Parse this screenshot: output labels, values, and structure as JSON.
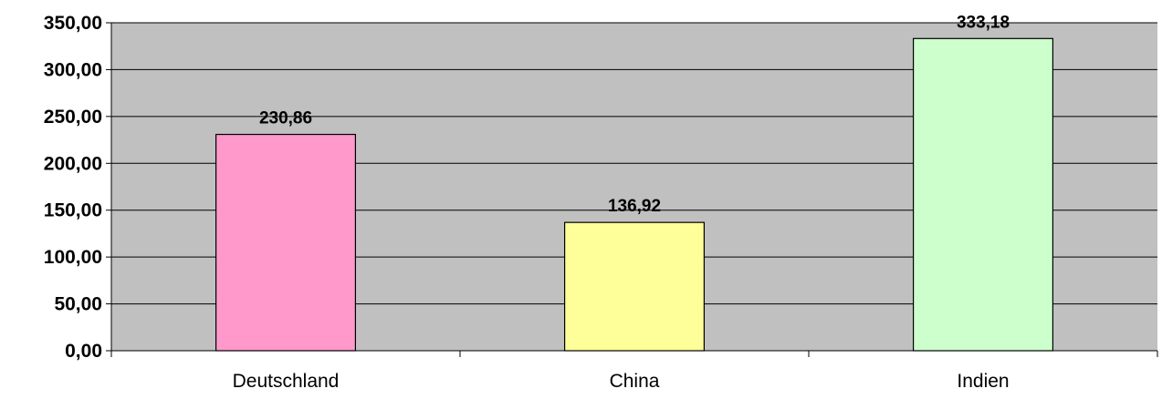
{
  "chart_data": {
    "type": "bar",
    "categories": [
      "Deutschland",
      "China",
      "Indien"
    ],
    "values": [
      230.86,
      136.92,
      333.18
    ],
    "value_labels": [
      "230,86",
      "136,92",
      "333,18"
    ],
    "bar_colors": [
      "#ff99cc",
      "#ffff99",
      "#ccffcc"
    ],
    "plot_background": "#c0c0c0",
    "ylim": [
      0,
      350
    ],
    "yticks": [
      0,
      50,
      100,
      150,
      200,
      250,
      300,
      350
    ],
    "ytick_labels": [
      "0,00",
      "50,00",
      "100,00",
      "150,00",
      "200,00",
      "250,00",
      "300,00",
      "350,00"
    ],
    "grid": true,
    "legend": "none",
    "title": "",
    "xlabel": "",
    "ylabel": ""
  }
}
